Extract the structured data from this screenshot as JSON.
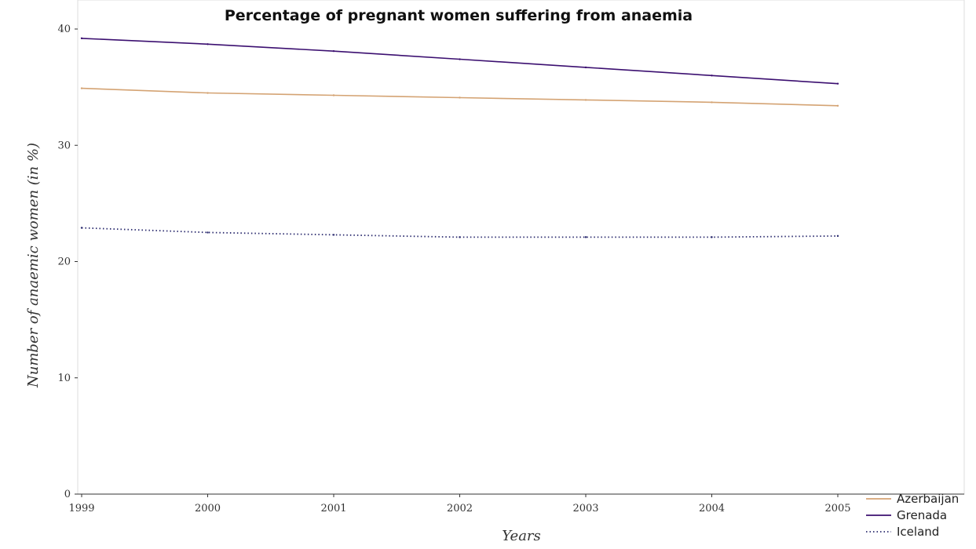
{
  "chart_data": {
    "type": "line",
    "title": "Percentage of pregnant women suffering from anaemia",
    "xlabel": "Years",
    "ylabel": "Number of anaemic women (in %)",
    "categories": [
      "1999",
      "2000",
      "2001",
      "2002",
      "2003",
      "2004",
      "2005"
    ],
    "ylim": [
      0,
      40
    ],
    "yticks": [
      0,
      10,
      20,
      30,
      40
    ],
    "grid": false,
    "legend_position": "bottom-right",
    "series": [
      {
        "name": "Azerbaijan",
        "color": "#d4a373",
        "dash": "solid",
        "values": [
          34.9,
          34.5,
          34.3,
          34.1,
          33.9,
          33.7,
          33.4
        ]
      },
      {
        "name": "Grenada",
        "color": "#3b0f70",
        "dash": "solid",
        "values": [
          39.2,
          38.7,
          38.1,
          37.4,
          36.7,
          36.0,
          35.3
        ]
      },
      {
        "name": "Iceland",
        "color": "#2a2a6e",
        "dash": "dotted",
        "values": [
          22.9,
          22.5,
          22.3,
          22.1,
          22.1,
          22.1,
          22.2
        ]
      }
    ]
  }
}
